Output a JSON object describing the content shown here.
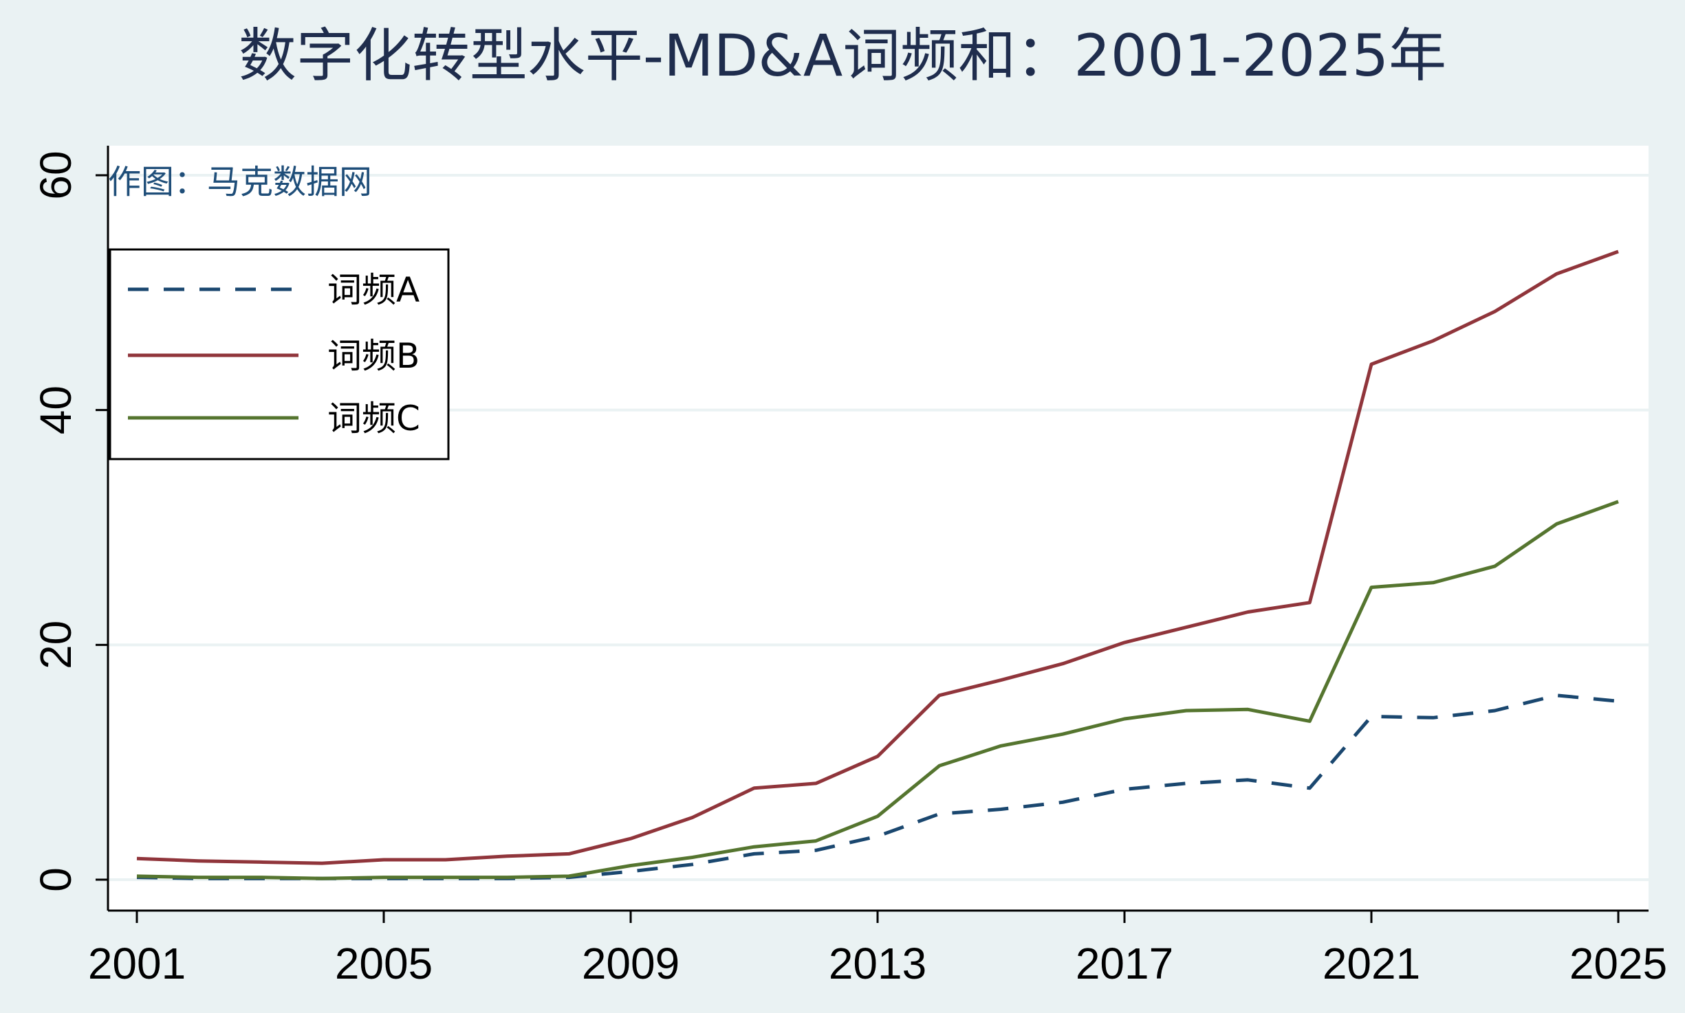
{
  "chart_data": {
    "type": "line",
    "title": "数字化转型水平-MD&A词频和：2001-2025年",
    "annotation": "作图：马克数据网",
    "xlabel": "",
    "ylabel": "",
    "xlim": [
      2001,
      2025
    ],
    "ylim": [
      0,
      60
    ],
    "x_ticks": [
      2001,
      2005,
      2009,
      2013,
      2017,
      2021,
      2025
    ],
    "y_ticks": [
      0,
      20,
      40,
      60
    ],
    "grid": "horizontal",
    "legend_position": "top-left",
    "x": [
      2001,
      2002,
      2003,
      2004,
      2005,
      2006,
      2007,
      2008,
      2009,
      2010,
      2011,
      2012,
      2013,
      2014,
      2015,
      2016,
      2017,
      2018,
      2019,
      2020,
      2021,
      2022,
      2023,
      2024,
      2025
    ],
    "series": [
      {
        "name": "词频A",
        "color": "#1a476f",
        "style": "dashed",
        "values": [
          0.2,
          0.1,
          0.1,
          0.1,
          0.1,
          0.1,
          0.1,
          0.2,
          0.7,
          1.3,
          2.2,
          2.5,
          3.7,
          5.6,
          6.0,
          6.6,
          7.7,
          8.2,
          8.5,
          7.8,
          13.9,
          13.8,
          14.4,
          15.7,
          15.2
        ]
      },
      {
        "name": "词频B",
        "color": "#90353b",
        "style": "solid",
        "values": [
          1.8,
          1.6,
          1.5,
          1.4,
          1.7,
          1.7,
          2.0,
          2.2,
          3.5,
          5.3,
          7.8,
          8.2,
          10.5,
          15.7,
          17.0,
          18.4,
          20.2,
          21.5,
          22.8,
          23.6,
          43.9,
          45.9,
          48.4,
          51.6,
          53.5
        ]
      },
      {
        "name": "词频C",
        "color": "#55752f",
        "style": "solid",
        "values": [
          0.3,
          0.2,
          0.2,
          0.1,
          0.2,
          0.2,
          0.2,
          0.3,
          1.2,
          1.9,
          2.8,
          3.3,
          5.4,
          9.7,
          11.4,
          12.4,
          13.7,
          14.4,
          14.5,
          13.5,
          24.9,
          25.3,
          26.7,
          30.3,
          32.2
        ]
      }
    ],
    "colors": {
      "background": "#eaf2f3",
      "plot_area": "#ffffff",
      "gridline": "#eaf2f3",
      "title": "#1f2d4d",
      "annotation": "#1f4e79"
    }
  }
}
